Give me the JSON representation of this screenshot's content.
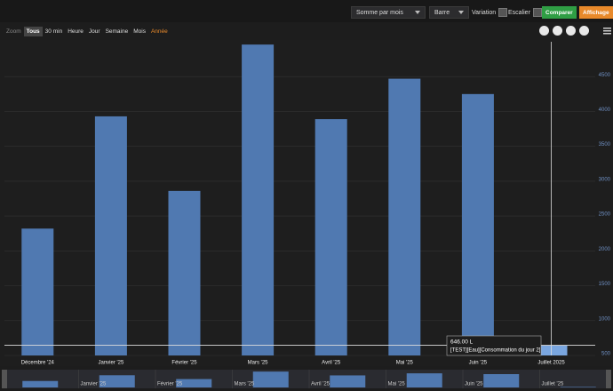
{
  "toolbar": {
    "aggregation": "Somme par mois",
    "chart_type": "Barre",
    "variation": "Variation",
    "stairs": "Escalier",
    "compare": "Comparer",
    "display": "Affichage"
  },
  "zoom": {
    "label": "Zoom",
    "options": [
      "Tous",
      "30 min",
      "Heure",
      "Jour",
      "Semaine",
      "Mois",
      "Année"
    ]
  },
  "chart_data": {
    "type": "bar",
    "categories": [
      "Décembre '24",
      "Janvier '25",
      "Février '25",
      "Mars '25",
      "Avril '25",
      "Mai '25",
      "Juin '25",
      "Juillet 2025"
    ],
    "series": [
      {
        "name": "[TEST][Eau][Consommation du jour 2]",
        "color": "#5079b1",
        "values": [
          2320,
          3930,
          2860,
          4960,
          3890,
          4470,
          4250,
          646
        ],
        "value_labels": [
          null,
          null,
          null,
          null,
          null,
          null,
          null,
          "646.00 L"
        ]
      }
    ],
    "ylim": [
      500,
      5000
    ],
    "yticks": [
      500,
      1000,
      1500,
      2000,
      2500,
      3000,
      3500,
      4000,
      4500
    ],
    "grid": true
  },
  "navigator": {
    "labels": [
      "Janvier '25",
      "Février '25",
      "Mars '25",
      "Avril '25",
      "Mai '25",
      "Juin '25",
      "Juillet '25"
    ]
  }
}
